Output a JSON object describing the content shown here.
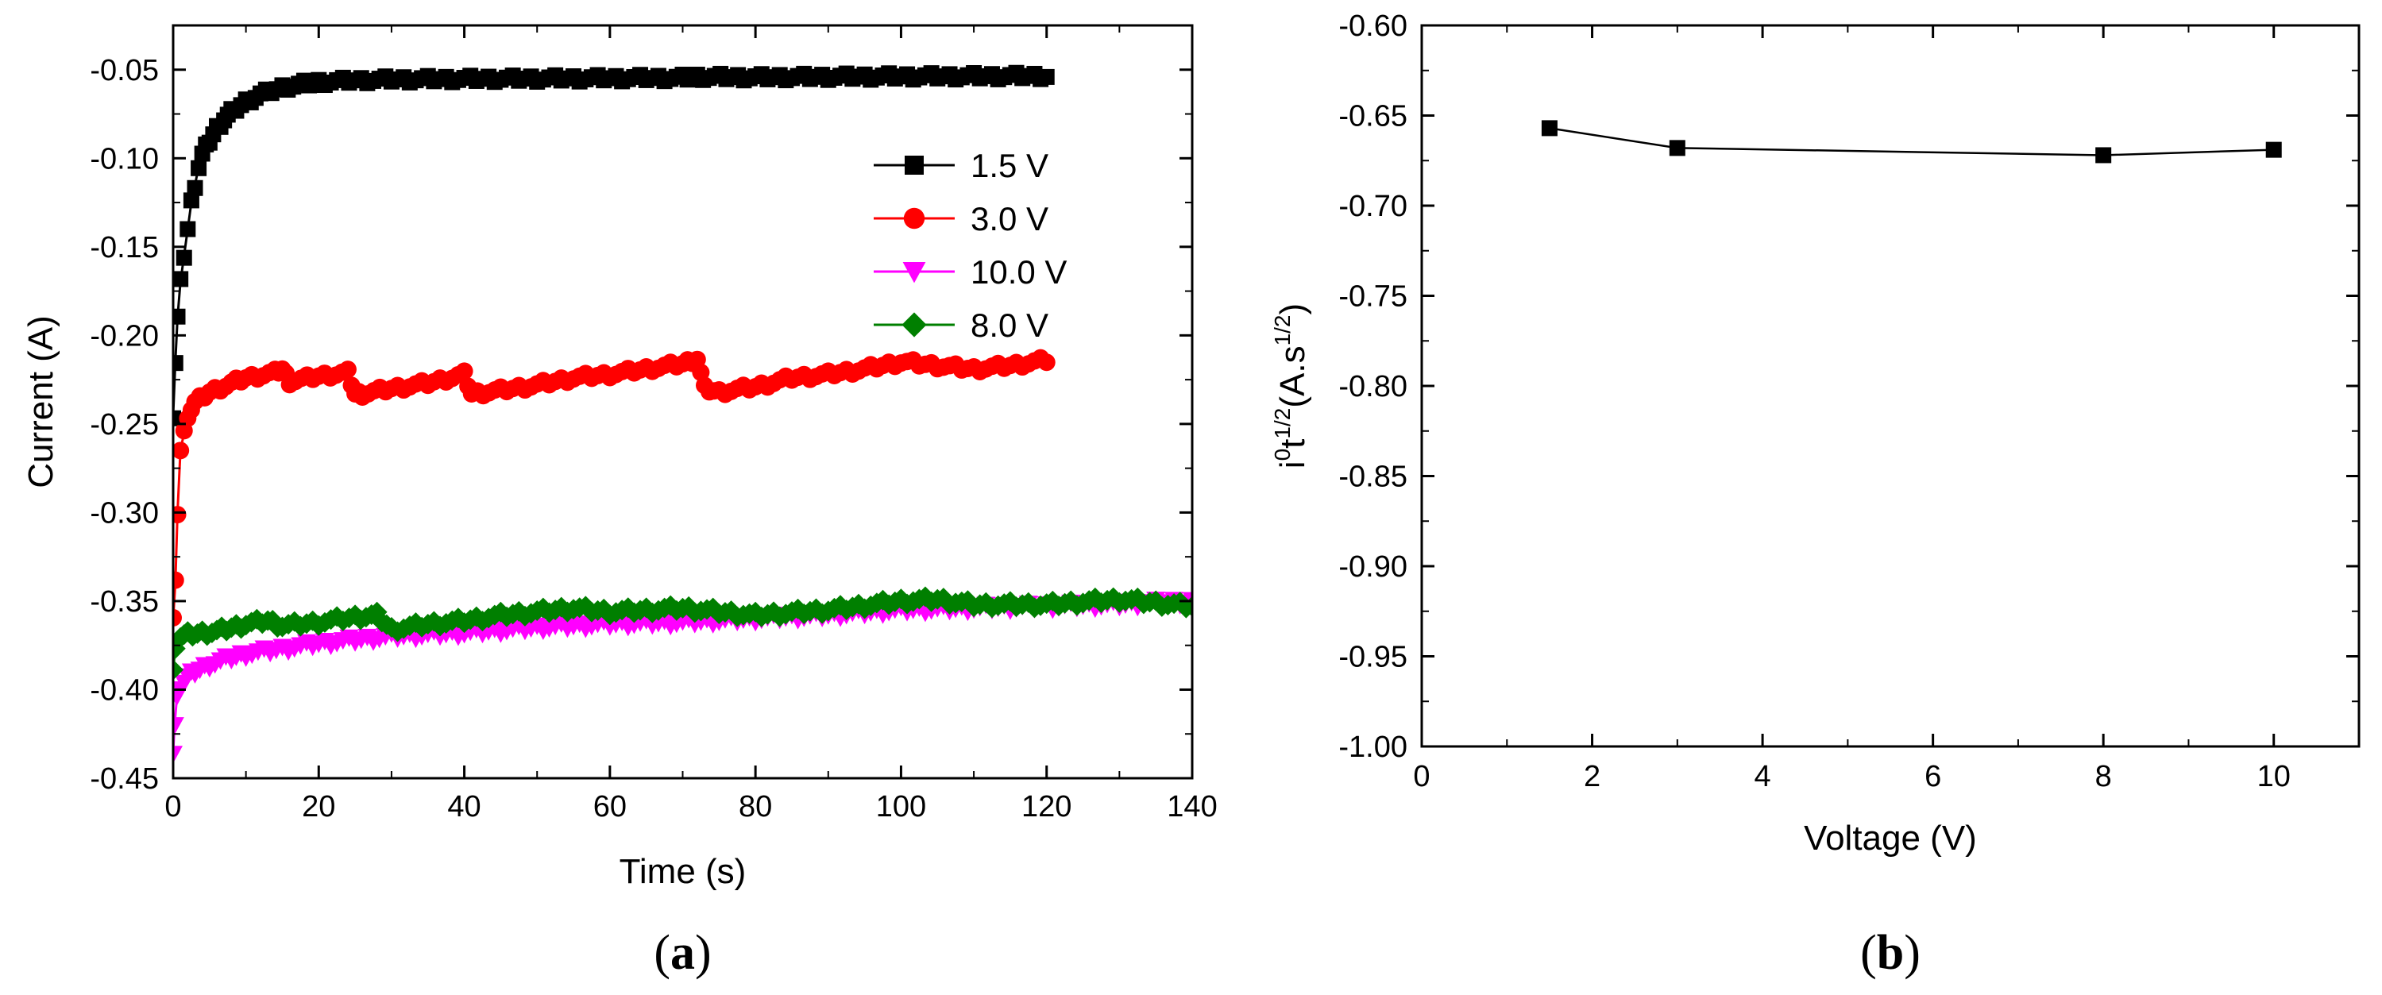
{
  "chart_data": [
    {
      "id": "a",
      "panel_label": {
        "open": "(",
        "letter": "a",
        "close": ")"
      },
      "type": "line",
      "title": "",
      "xlabel": "Time (s)",
      "ylabel": "Current (A)",
      "xlim": [
        0,
        140
      ],
      "ylim": [
        -0.45,
        -0.025
      ],
      "xticks": [
        0,
        20,
        40,
        60,
        80,
        100,
        120,
        140
      ],
      "xtick_labels": [
        "0",
        "20",
        "40",
        "60",
        "80",
        "100",
        "120",
        "140"
      ],
      "yticks": [
        -0.45,
        -0.4,
        -0.35,
        -0.3,
        -0.25,
        -0.2,
        -0.15,
        -0.1,
        -0.05
      ],
      "ytick_labels": [
        "-0.45",
        "-0.40",
        "-0.35",
        "-0.30",
        "-0.25",
        "-0.20",
        "-0.15",
        "-0.10",
        "-0.05"
      ],
      "grid": false,
      "legend_position": "top-right",
      "series": [
        {
          "name": "1.5 V",
          "color": "#000000",
          "marker": "square",
          "x": [
            0,
            0.3,
            0.6,
            1,
            1.5,
            2,
            2.5,
            3,
            3.5,
            4,
            5,
            6,
            7,
            8,
            10,
            12,
            15,
            18,
            20,
            25,
            30,
            40,
            50,
            60,
            70,
            72,
            80,
            90,
            100,
            110,
            120
          ],
          "y": [
            -0.245,
            -0.215,
            -0.19,
            -0.17,
            -0.155,
            -0.14,
            -0.125,
            -0.115,
            -0.105,
            -0.098,
            -0.09,
            -0.083,
            -0.078,
            -0.074,
            -0.068,
            -0.064,
            -0.06,
            -0.058,
            -0.057,
            -0.056,
            -0.0555,
            -0.0552,
            -0.055,
            -0.0548,
            -0.0546,
            -0.054,
            -0.0543,
            -0.054,
            -0.0538,
            -0.0537,
            -0.0535
          ]
        },
        {
          "name": "3.0 V",
          "color": "#ff0000",
          "marker": "circle",
          "x": [
            0,
            0.3,
            0.6,
            1,
            1.5,
            2,
            3,
            5,
            8,
            10,
            14,
            15,
            16,
            20,
            24,
            25,
            26,
            30,
            35,
            40,
            41,
            45,
            50,
            55,
            60,
            65,
            70,
            72,
            73,
            75,
            80,
            85,
            90,
            95,
            100,
            105,
            110,
            115,
            120
          ],
          "y": [
            -0.36,
            -0.34,
            -0.3,
            -0.265,
            -0.255,
            -0.245,
            -0.238,
            -0.232,
            -0.227,
            -0.224,
            -0.221,
            -0.219,
            -0.226,
            -0.223,
            -0.221,
            -0.233,
            -0.233,
            -0.23,
            -0.227,
            -0.222,
            -0.233,
            -0.231,
            -0.228,
            -0.224,
            -0.222,
            -0.219,
            -0.216,
            -0.213,
            -0.23,
            -0.232,
            -0.229,
            -0.224,
            -0.222,
            -0.219,
            -0.215,
            -0.217,
            -0.219,
            -0.217,
            -0.214
          ]
        },
        {
          "name": "10.0 V",
          "color": "#ff00ff",
          "marker": "triangle-down",
          "x": [
            0,
            0.2,
            0.5,
            1,
            2,
            3,
            5,
            8,
            10,
            15,
            20,
            25,
            30,
            40,
            50,
            60,
            70,
            80,
            90,
            100,
            110,
            120,
            130,
            140
          ],
          "y": [
            -0.435,
            -0.42,
            -0.405,
            -0.398,
            -0.393,
            -0.39,
            -0.386,
            -0.382,
            -0.38,
            -0.377,
            -0.374,
            -0.372,
            -0.37,
            -0.368,
            -0.365,
            -0.363,
            -0.362,
            -0.36,
            -0.358,
            -0.355,
            -0.354,
            -0.353,
            -0.352,
            -0.35
          ]
        },
        {
          "name": "8.0 V",
          "color": "#007f00",
          "marker": "diamond",
          "x": [
            0,
            0.3,
            1,
            2,
            4,
            6,
            8,
            10,
            13,
            15,
            20,
            25,
            28,
            30,
            35,
            40,
            45,
            50,
            55,
            60,
            65,
            70,
            75,
            80,
            90,
            100,
            105,
            110,
            120,
            130,
            140
          ],
          "y": [
            -0.39,
            -0.375,
            -0.37,
            -0.369,
            -0.368,
            -0.367,
            -0.365,
            -0.363,
            -0.361,
            -0.364,
            -0.362,
            -0.359,
            -0.358,
            -0.366,
            -0.363,
            -0.361,
            -0.358,
            -0.356,
            -0.354,
            -0.356,
            -0.355,
            -0.354,
            -0.356,
            -0.358,
            -0.355,
            -0.35,
            -0.349,
            -0.352,
            -0.352,
            -0.349,
            -0.353
          ]
        }
      ]
    },
    {
      "id": "b",
      "panel_label": {
        "open": "(",
        "letter": "b",
        "close": ")"
      },
      "type": "line",
      "title": "",
      "xlabel": "Voltage (V)",
      "ylabel": {
        "base": "i",
        "sup1": "0",
        "mid": "t",
        "sup2": "1/2",
        "units_open": "(A.s",
        "sup3": "1/2",
        "units_close": ")"
      },
      "xlim": [
        0,
        11
      ],
      "ylim": [
        -1.0,
        -0.6
      ],
      "xticks": [
        0,
        2,
        4,
        6,
        8,
        10
      ],
      "xtick_labels": [
        "0",
        "2",
        "4",
        "6",
        "8",
        "10"
      ],
      "yticks": [
        -1.0,
        -0.95,
        -0.9,
        -0.85,
        -0.8,
        -0.75,
        -0.7,
        -0.65,
        -0.6
      ],
      "ytick_labels": [
        "-1.00",
        "-0.95",
        "-0.90",
        "-0.85",
        "-0.80",
        "-0.75",
        "-0.70",
        "-0.65",
        "-0.60"
      ],
      "grid": false,
      "series": [
        {
          "name": "i0t1/2",
          "color": "#000000",
          "marker": "square",
          "x": [
            1.5,
            3.0,
            8.0,
            10.0
          ],
          "y": [
            -0.657,
            -0.668,
            -0.672,
            -0.669
          ]
        }
      ]
    }
  ]
}
